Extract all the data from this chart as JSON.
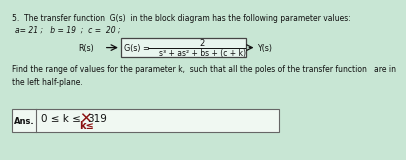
{
  "title": "5.  The transfer function  G(s)  in the block diagram has the following parameter values:",
  "params": "a= 21 ;   b = 19  ;  c =  20 ;",
  "Rs_label": "R(s)",
  "Ys_label": "Y(s)",
  "Gs_label": "G(s) =",
  "numerator": "2",
  "denominator": "s³ + as² + bs + (c + k)",
  "body_text": "Find the range of values for the parameter k,  such that all the poles of the transfer function   are in\nthe left half-plane.",
  "ans_label": "Ans.",
  "ans_line1": "0 ≤ k ≤",
  "ans_cross_char": "✕",
  "ans_num": "319",
  "ans_k_label": "k≤",
  "bg_color": "#c8e6d4",
  "box_facecolor": "#e8f5ee",
  "box_edgecolor": "#444444",
  "text_color": "#111111",
  "red_color": "#8B1010",
  "ans_box_facecolor": "#f0f8f2",
  "ans_box_edgecolor": "#666666"
}
